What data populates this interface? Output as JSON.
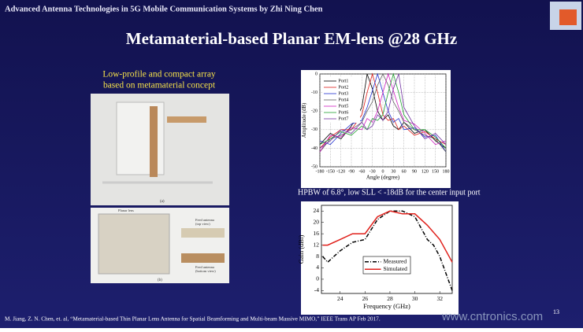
{
  "header": "Advanced Antenna Technologies in 5G Mobile Communication Systems by Zhi Ning Chen",
  "title": "Metamaterial-based Planar EM-lens @28 GHz",
  "caption_left": [
    "Low-profile and compact array",
    "based on metamaterial concept"
  ],
  "photo_labels": {
    "a": "(a)",
    "b": "(b)",
    "lens": "Planar lens",
    "feed_top": [
      "Feed antenna",
      "(top view)"
    ],
    "feed_bottom": [
      "Feed antenna",
      "(bottom view)"
    ]
  },
  "caption_right": "HPBW of 6.8°, low SLL < -18dB for the center input port",
  "chart_data": [
    {
      "type": "line",
      "xlabel": "Angle (degree)",
      "ylabel": "Amplitude (dB)",
      "x": [
        -180,
        -150,
        -120,
        -90,
        -60,
        -45,
        -30,
        -15,
        0,
        15,
        30,
        45,
        60,
        90,
        120,
        150,
        180
      ],
      "xlim": [
        -180,
        180
      ],
      "xticks": [
        -180,
        -150,
        -120,
        -90,
        -60,
        -30,
        0,
        30,
        60,
        90,
        120,
        150,
        180
      ],
      "ylim": [
        -50,
        0
      ],
      "yticks": [
        0,
        -10,
        -20,
        -30,
        -40,
        -50
      ],
      "grid": true,
      "legend": "upper-left",
      "series": [
        {
          "name": "Port1",
          "color": "#000000",
          "style": "solid",
          "values": [
            -38,
            -32,
            -35,
            -28,
            -18,
            0,
            -8,
            -20,
            -25,
            -22,
            -28,
            -30,
            -26,
            -32,
            -30,
            -36,
            -40
          ]
        },
        {
          "name": "Port2",
          "color": "#e0201b",
          "style": "solid",
          "values": [
            -40,
            -34,
            -30,
            -30,
            -22,
            -10,
            0,
            -10,
            -22,
            -25,
            -24,
            -30,
            -28,
            -33,
            -31,
            -35,
            -38
          ]
        },
        {
          "name": "Port3",
          "color": "#2030d0",
          "style": "solid",
          "values": [
            -36,
            -38,
            -32,
            -27,
            -25,
            -18,
            -9,
            0,
            -10,
            -20,
            -26,
            -24,
            -30,
            -29,
            -34,
            -33,
            -42
          ]
        },
        {
          "name": "Port4",
          "color": "#606060",
          "style": "solid",
          "values": [
            -42,
            -35,
            -33,
            -30,
            -26,
            -20,
            -15,
            -6,
            0,
            -6,
            -15,
            -20,
            -26,
            -30,
            -33,
            -35,
            -42
          ]
        },
        {
          "name": "Port5",
          "color": "#d020c0",
          "style": "solid",
          "values": [
            -42,
            -33,
            -34,
            -29,
            -30,
            -24,
            -26,
            -20,
            -10,
            0,
            -9,
            -18,
            -25,
            -27,
            -32,
            -38,
            -36
          ]
        },
        {
          "name": "Port6",
          "color": "#20a030",
          "style": "solid",
          "values": [
            -38,
            -35,
            -31,
            -33,
            -28,
            -30,
            -24,
            -25,
            -22,
            -10,
            0,
            -10,
            -22,
            -30,
            -30,
            -34,
            -40
          ]
        },
        {
          "name": "Port7",
          "color": "#7030a0",
          "style": "solid",
          "values": [
            -40,
            -36,
            -30,
            -32,
            -26,
            -30,
            -28,
            -22,
            -25,
            -20,
            -8,
            0,
            -18,
            -28,
            -35,
            -32,
            -38
          ]
        }
      ]
    },
    {
      "type": "line",
      "xlabel": "Frequency (GHz)",
      "ylabel": "Gain (dBi)",
      "xlim": [
        22.5,
        33
      ],
      "xticks": [
        24,
        26,
        28,
        30,
        32
      ],
      "ylim": [
        -5,
        26
      ],
      "yticks": [
        -4,
        0,
        4,
        8,
        12,
        16,
        20,
        24
      ],
      "grid": false,
      "legend": "lower-center",
      "series": [
        {
          "name": "Measured",
          "color": "#000000",
          "style": "dash-dot",
          "x": [
            22.6,
            23,
            23.5,
            24,
            25,
            26,
            27,
            28,
            29,
            30,
            31,
            31.5,
            32,
            32.5,
            33
          ],
          "values": [
            8,
            6,
            8,
            10,
            13,
            14,
            21,
            24,
            24,
            22,
            14,
            12,
            8,
            2,
            -4
          ]
        },
        {
          "name": "Simulated",
          "color": "#e0201b",
          "style": "solid",
          "x": [
            22.6,
            23,
            24,
            25,
            26,
            27,
            28,
            29,
            30,
            31,
            32,
            32.5,
            33
          ],
          "values": [
            12,
            12,
            14,
            16,
            16,
            22,
            24,
            23,
            23,
            19,
            14,
            10,
            6
          ]
        }
      ]
    }
  ],
  "reference": "M. Jiang, Z. N. Chen, et. al, “Metamaterial-based Thin Planar Lens Antenna for Spatial Beamforming and Multi-beam Massive MIMO,” IEEE Trans AP Feb 2017.",
  "page_number": "13",
  "watermark": "www.cntronics.com"
}
